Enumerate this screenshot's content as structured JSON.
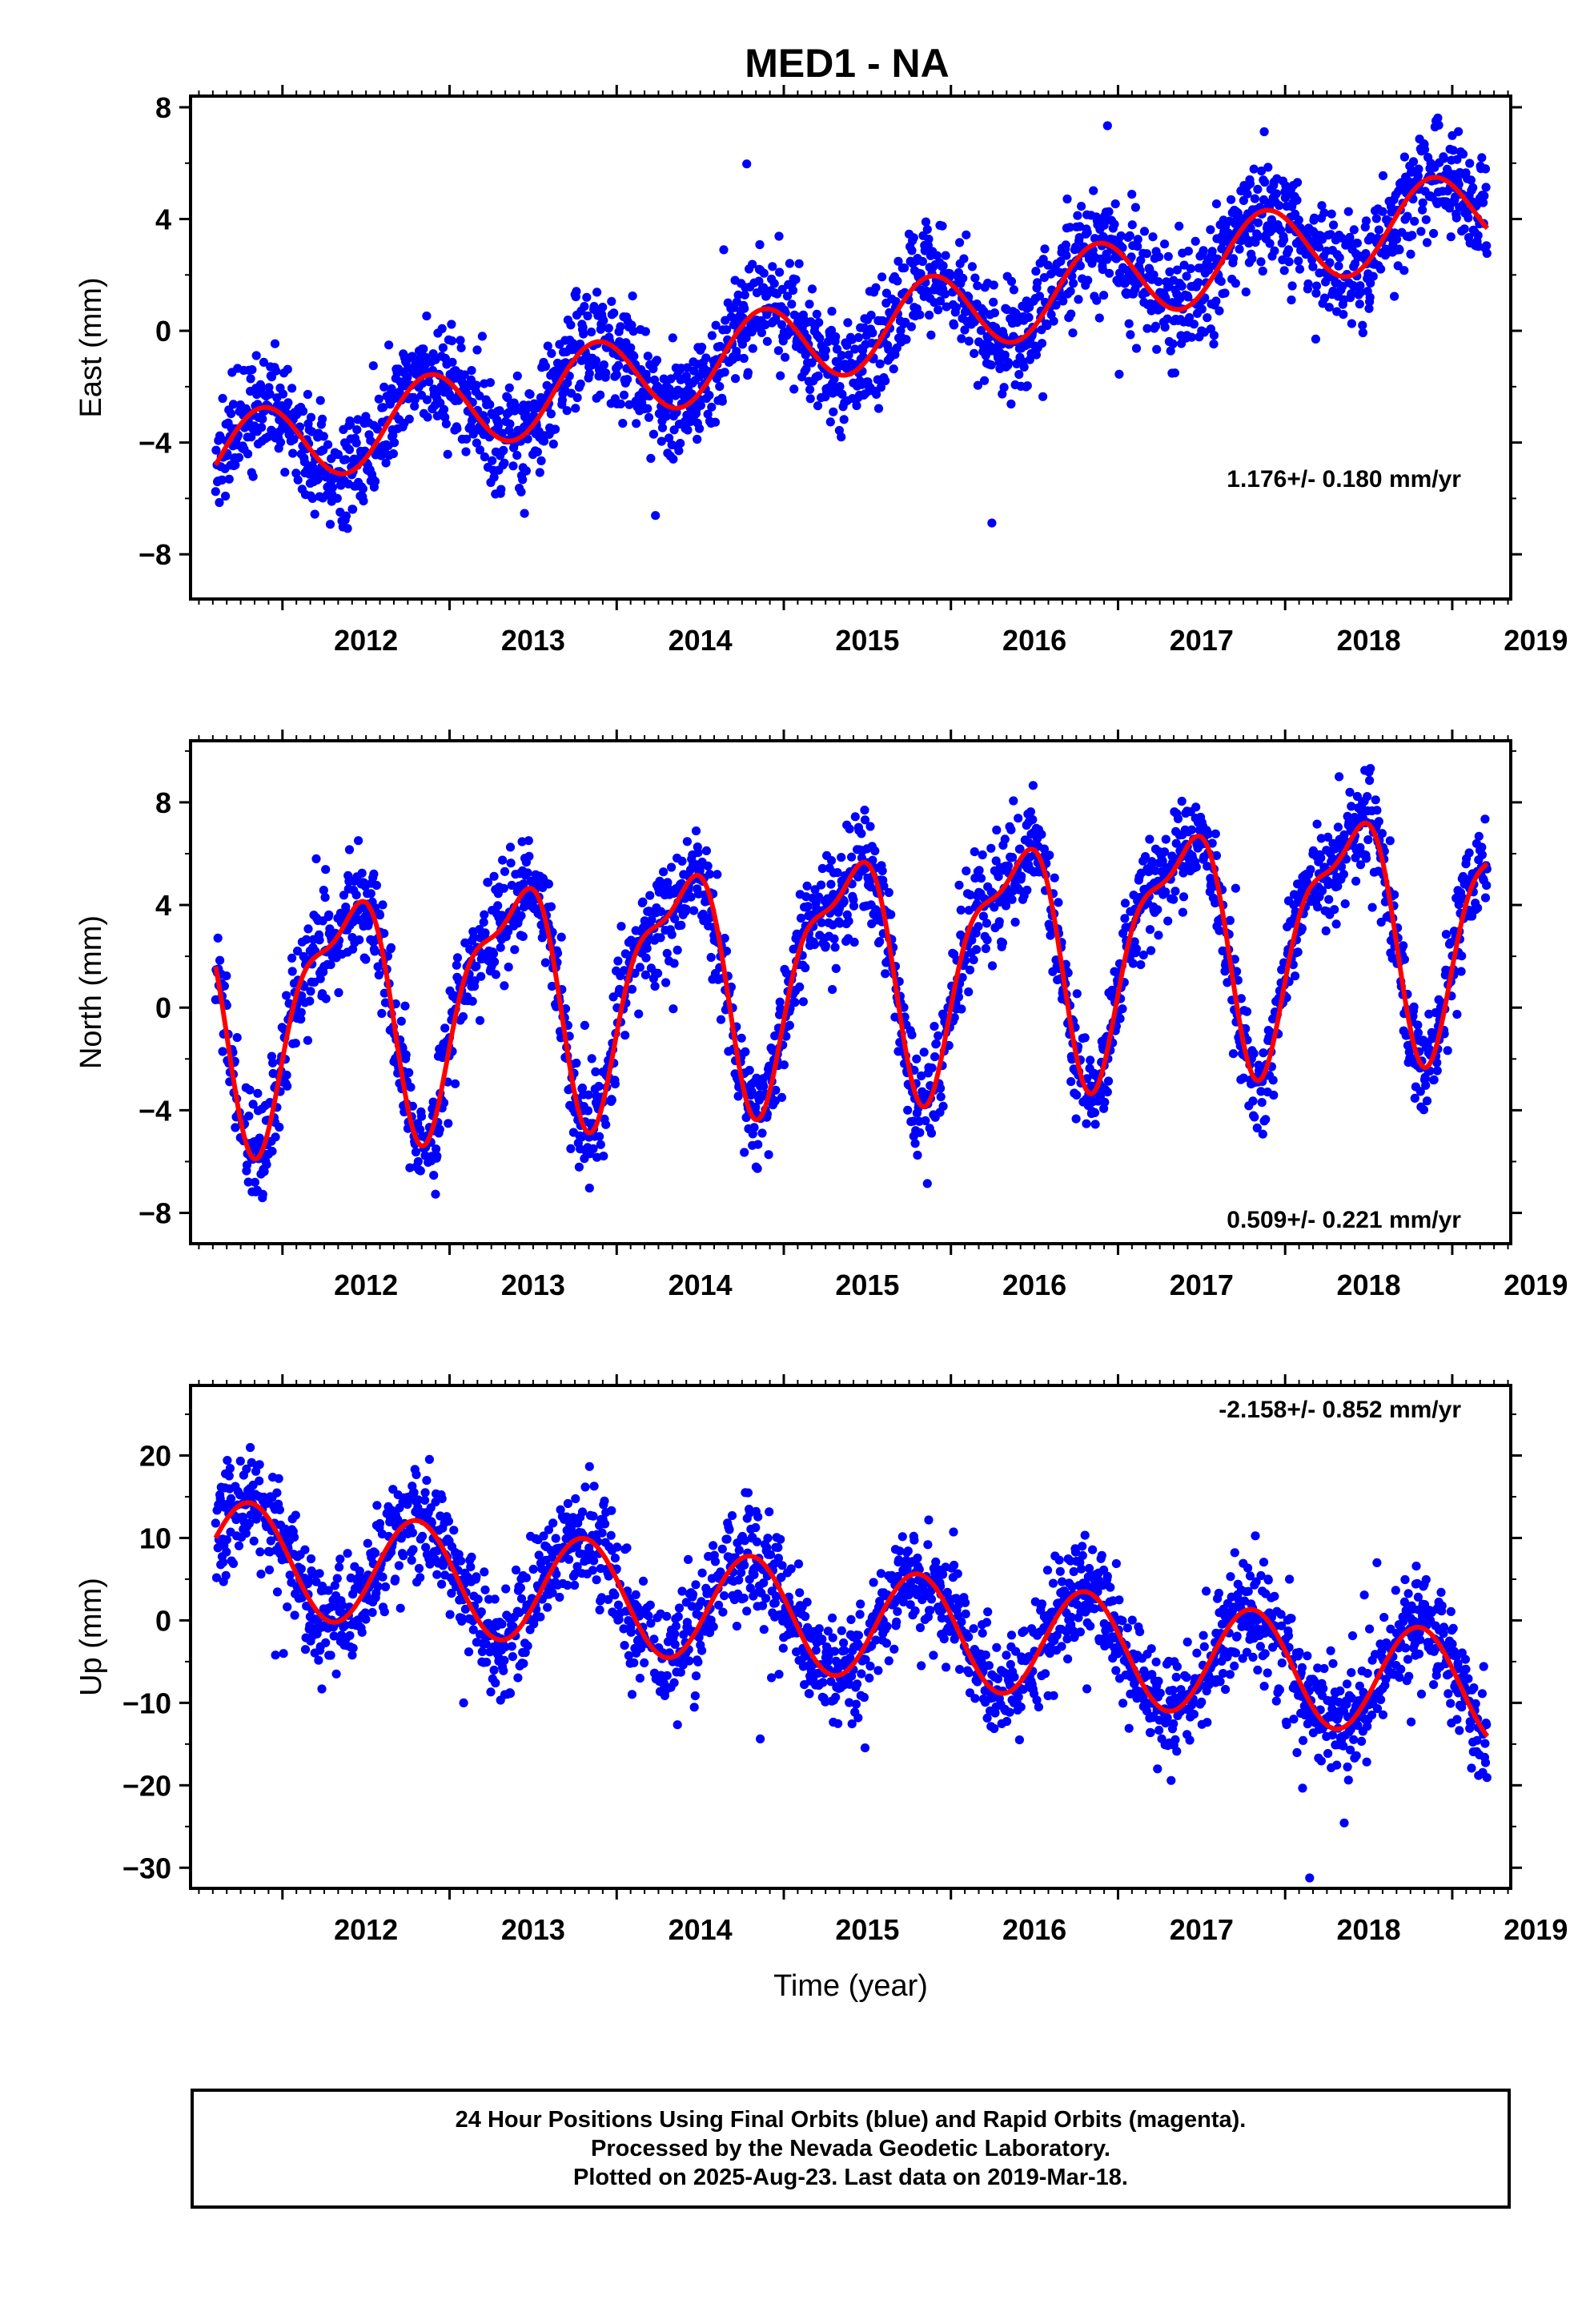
{
  "title": "MED1 - NA",
  "colors": {
    "final_orbits": "#0000ff",
    "model": "#ff0000",
    "frame": "#000000"
  },
  "chart_data": [
    {
      "type": "scatter",
      "component": "east",
      "ylabel": "East (mm)",
      "xlim": [
        2011.45,
        2019.35
      ],
      "ylim": [
        -9.6,
        8.4
      ],
      "yticks": [
        -8,
        -4,
        0,
        4,
        8
      ],
      "ytick_labels": [
        "−8",
        "−4",
        "0",
        "4",
        "8"
      ],
      "xticks": [
        2012,
        2013,
        2014,
        2015,
        2016,
        2017,
        2018,
        2019
      ],
      "rate_label": "1.176+/- 0.180 mm/yr",
      "model": {
        "offset": -4.55,
        "rate": 1.176,
        "t0": 2011.6,
        "annual_cos": -0.25,
        "annual_sin": 1.45,
        "semi_cos": 0.0,
        "semi_sin": 0.0
      },
      "scatter": {
        "noise": 1.0,
        "from": 2011.6,
        "to": 2019.21,
        "step": 0.0028,
        "seed": 11
      },
      "series": [
        {
          "name": "Final Orbits",
          "color": "#0000ff",
          "kind": "points"
        },
        {
          "name": "Model",
          "color": "#ff0000",
          "kind": "line"
        }
      ]
    },
    {
      "type": "scatter",
      "component": "north",
      "ylabel": "North (mm)",
      "xlim": [
        2011.45,
        2019.35
      ],
      "ylim": [
        -9.2,
        10.4
      ],
      "yticks": [
        -8,
        -4,
        0,
        4,
        8
      ],
      "ytick_labels": [
        "−8",
        "−4",
        "0",
        "4",
        "8"
      ],
      "xticks": [
        2012,
        2013,
        2014,
        2015,
        2016,
        2017,
        2018,
        2019
      ],
      "rate_label": "0.509+/- 0.221 mm/yr",
      "model": {
        "offset": -0.3,
        "rate": 0.509,
        "t0": 2011.6,
        "annual_cos": 0.5,
        "annual_sin": -4.3,
        "semi_cos": 1.4,
        "semi_sin": -0.6
      },
      "scatter": {
        "noise": 1.0,
        "from": 2011.6,
        "to": 2019.21,
        "step": 0.0028,
        "seed": 23
      },
      "series": [
        {
          "name": "Final Orbits",
          "color": "#0000ff",
          "kind": "points"
        },
        {
          "name": "Model",
          "color": "#ff0000",
          "kind": "line"
        }
      ]
    },
    {
      "type": "scatter",
      "component": "up",
      "ylabel": "Up (mm)",
      "xlabel": "Time (year)",
      "xlim": [
        2011.45,
        2019.35
      ],
      "ylim": [
        -32.5,
        28.5
      ],
      "yticks": [
        -30,
        -20,
        -10,
        0,
        10,
        20
      ],
      "ytick_labels": [
        "−30",
        "−20",
        "−10",
        "0",
        "10",
        "20"
      ],
      "xticks": [
        2012,
        2013,
        2014,
        2015,
        2016,
        2017,
        2018,
        2019
      ],
      "rate_label": "-2.158+/- 0.852 mm/yr",
      "model": {
        "offset": 8.0,
        "rate": -2.158,
        "t0": 2011.6,
        "annual_cos": 2.0,
        "annual_sin": 6.4,
        "semi_cos": 0.0,
        "semi_sin": 0.0
      },
      "scatter": {
        "noise": 3.3,
        "from": 2011.6,
        "to": 2019.21,
        "step": 0.0028,
        "seed": 37
      },
      "series": [
        {
          "name": "Final Orbits",
          "color": "#0000ff",
          "kind": "points"
        },
        {
          "name": "Model",
          "color": "#ff0000",
          "kind": "line"
        }
      ]
    }
  ],
  "footer": {
    "line1": "24 Hour Positions Using Final Orbits (blue) and Rapid Orbits (magenta).",
    "line2": "Processed by the Nevada Geodetic Laboratory.",
    "line3": "Plotted on 2025-Aug-23. Last data on 2019-Mar-18."
  }
}
